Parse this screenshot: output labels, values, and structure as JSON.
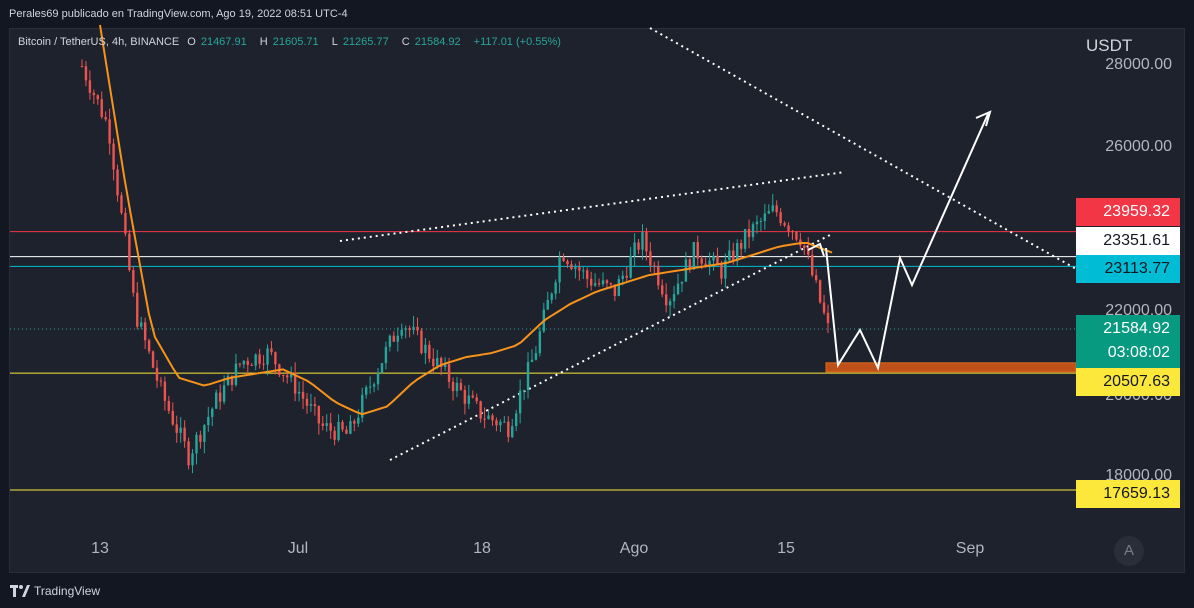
{
  "attribution": "Perales69 publicado en TradingView.com, Ago 19, 2022 08:51 UTC-4",
  "symbol": {
    "name": "Bitcoin / TetherUS, 4h, BINANCE",
    "open_label": "O",
    "open": "21467.91",
    "high_label": "H",
    "high": "21605.71",
    "low_label": "L",
    "low": "21265.77",
    "close_label": "C",
    "close": "21584.92",
    "change": "+117.01 (+0.55%)"
  },
  "price_axis": {
    "unit": "USDT",
    "ticks": [
      "28000.00",
      "26000.00",
      "22000.00",
      "20000.00",
      "18000.00"
    ]
  },
  "time_axis": {
    "ticks": [
      "13",
      "Jul",
      "18",
      "Ago",
      "15",
      "Sep"
    ]
  },
  "price_tags": {
    "red": "23959.32",
    "white": "23351.61",
    "cyan": "23113.77",
    "current_price": "21584.92",
    "countdown": "03:08:02",
    "yellow_1": "20507.63",
    "yellow_2": "17659.13"
  },
  "auto_button": "A",
  "footer": {
    "brand": "TradingView"
  },
  "colors": {
    "background": "#131722",
    "up_candle": "#26a69a",
    "down_candle": "#ef5350",
    "moving_average": "#f7931a",
    "red_line": "#f23645",
    "cyan_line": "#00bcd4",
    "yellow_line": "#fce83a",
    "zone": "#c0501a"
  },
  "chart_data": {
    "type": "line",
    "description_of_series": "candlestick price series with moving average",
    "x": [
      "13",
      "Jul",
      "18",
      "Ago",
      "15",
      "Sep"
    ],
    "ylim": [
      17000,
      28500
    ],
    "close_path": [
      28000,
      26500,
      22000,
      20000,
      18500,
      19800,
      20800,
      21000,
      20200,
      19200,
      19000,
      20500,
      21800,
      21000,
      20200,
      19500,
      19200,
      21000,
      23500,
      22800,
      22500,
      23800,
      22300,
      23500,
      23000,
      23900,
      24500,
      23800,
      21584.92
    ],
    "moving_average_path": [
      29000,
      25000,
      21500,
      20400,
      20200,
      20400,
      20500,
      20600,
      20300,
      19800,
      19500,
      19700,
      20300,
      20700,
      20900,
      21000,
      21200,
      21800,
      22200,
      22500,
      22700,
      22900,
      23000,
      23100,
      23200,
      23400,
      23600,
      23700,
      23450
    ],
    "horizontal_levels": [
      23959.32,
      23351.61,
      23113.77,
      20507.63,
      17659.13
    ],
    "projection_path": [
      23200,
      21300,
      20700,
      21500,
      20700,
      23300,
      22700,
      26800
    ],
    "grid": false
  }
}
